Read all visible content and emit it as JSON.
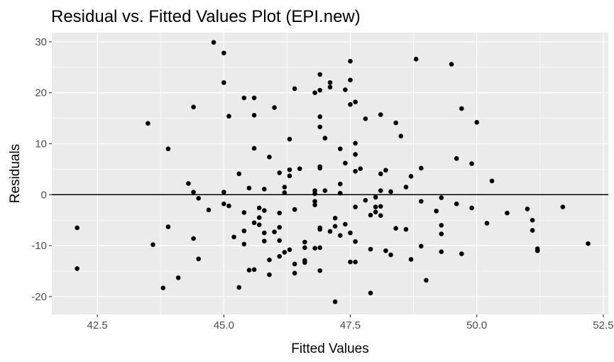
{
  "chart_data": {
    "type": "scatter",
    "title": "Residual vs. Fitted Values Plot (EPI.new)",
    "xlabel": "Fitted Values",
    "ylabel": "Residuals",
    "xlim": [
      41.6,
      52.6
    ],
    "ylim": [
      -23.5,
      31.8
    ],
    "x_ticks": [
      42.5,
      45.0,
      47.5,
      50.0,
      52.5
    ],
    "x_tick_labels": [
      "42.5",
      "45.0",
      "47.5",
      "50.0",
      "52.5"
    ],
    "y_ticks": [
      -20,
      -10,
      0,
      10,
      20,
      30
    ],
    "y_tick_labels": [
      "-20",
      "-10",
      "0",
      "10",
      "20",
      "30"
    ],
    "hline": 0,
    "grid": true,
    "colors": {
      "panel": "#ebebeb",
      "grid": "#ffffff",
      "point": "#000000",
      "hline": "#000000",
      "tick_text": "#4d4d4d"
    },
    "points": [
      [
        42.1,
        -6.5
      ],
      [
        42.1,
        -14.5
      ],
      [
        43.5,
        14.0
      ],
      [
        43.6,
        -9.8
      ],
      [
        43.8,
        -18.3
      ],
      [
        43.9,
        -6.3
      ],
      [
        43.9,
        9.0
      ],
      [
        44.1,
        -16.3
      ],
      [
        44.3,
        2.2
      ],
      [
        44.4,
        0.5
      ],
      [
        44.4,
        -8.6
      ],
      [
        44.4,
        17.2
      ],
      [
        44.5,
        -12.6
      ],
      [
        44.5,
        -0.7
      ],
      [
        44.7,
        -3.0
      ],
      [
        44.8,
        29.9
      ],
      [
        45.0,
        0.5
      ],
      [
        45.0,
        27.8
      ],
      [
        45.0,
        -1.8
      ],
      [
        45.0,
        22.0
      ],
      [
        45.1,
        -2.2
      ],
      [
        45.1,
        15.4
      ],
      [
        45.2,
        -8.3
      ],
      [
        45.3,
        -18.2
      ],
      [
        45.3,
        4.1
      ],
      [
        45.4,
        19.0
      ],
      [
        45.4,
        -7.1
      ],
      [
        45.4,
        -9.7
      ],
      [
        45.4,
        -3.5
      ],
      [
        45.5,
        -14.8
      ],
      [
        45.5,
        1.3
      ],
      [
        45.6,
        -14.7
      ],
      [
        45.6,
        19.0
      ],
      [
        45.6,
        15.6
      ],
      [
        45.6,
        9.1
      ],
      [
        45.6,
        -5.5
      ],
      [
        45.7,
        -2.6
      ],
      [
        45.7,
        -4.5
      ],
      [
        45.7,
        -5.9
      ],
      [
        45.8,
        -7.5
      ],
      [
        45.8,
        -3.1
      ],
      [
        45.8,
        1.1
      ],
      [
        45.8,
        -9.1
      ],
      [
        45.9,
        -15.7
      ],
      [
        45.9,
        -12.8
      ],
      [
        45.9,
        7.4
      ],
      [
        46.0,
        -7.3
      ],
      [
        46.0,
        17.1
      ],
      [
        46.1,
        -6.4
      ],
      [
        46.1,
        -3.6
      ],
      [
        46.1,
        4.3
      ],
      [
        46.1,
        -12.1
      ],
      [
        46.1,
        -9.0
      ],
      [
        46.2,
        -11.3
      ],
      [
        46.2,
        1.5
      ],
      [
        46.2,
        0.4
      ],
      [
        46.3,
        3.7
      ],
      [
        46.3,
        -10.8
      ],
      [
        46.3,
        10.9
      ],
      [
        46.3,
        4.9
      ],
      [
        46.4,
        -2.9
      ],
      [
        46.4,
        20.8
      ],
      [
        46.4,
        -13.6
      ],
      [
        46.4,
        -15.4
      ],
      [
        46.5,
        5.1
      ],
      [
        46.6,
        -10.4
      ],
      [
        46.6,
        -9.3
      ],
      [
        46.6,
        -13.3
      ],
      [
        46.6,
        -12.9
      ],
      [
        46.8,
        -1.3
      ],
      [
        46.8,
        0.2
      ],
      [
        46.8,
        -2.0
      ],
      [
        46.8,
        20.0
      ],
      [
        46.8,
        0.8
      ],
      [
        46.8,
        -10.5
      ],
      [
        46.9,
        5.5
      ],
      [
        46.9,
        5.2
      ],
      [
        46.9,
        -6.8
      ],
      [
        46.9,
        -6.5
      ],
      [
        46.9,
        23.6
      ],
      [
        46.9,
        20.5
      ],
      [
        46.9,
        15.3
      ],
      [
        46.9,
        13.3
      ],
      [
        46.9,
        -10.4
      ],
      [
        46.9,
        -14.9
      ],
      [
        47.0,
        0.8
      ],
      [
        47.0,
        11.1
      ],
      [
        47.1,
        21.1
      ],
      [
        47.1,
        22.0
      ],
      [
        47.1,
        -7.2
      ],
      [
        47.2,
        -21.0
      ],
      [
        47.2,
        -6.2
      ],
      [
        47.2,
        -4.6
      ],
      [
        47.3,
        0.3
      ],
      [
        47.3,
        2.1
      ],
      [
        47.3,
        -8.0
      ],
      [
        47.3,
        9.0
      ],
      [
        47.4,
        -5.8
      ],
      [
        47.4,
        6.2
      ],
      [
        47.4,
        20.6
      ],
      [
        47.5,
        -7.5
      ],
      [
        47.5,
        26.2
      ],
      [
        47.5,
        -13.2
      ],
      [
        47.5,
        17.7
      ],
      [
        47.5,
        22.5
      ],
      [
        47.6,
        18.2
      ],
      [
        47.6,
        -9.2
      ],
      [
        47.6,
        -13.2
      ],
      [
        47.6,
        10.1
      ],
      [
        47.6,
        7.9
      ],
      [
        47.6,
        4.6
      ],
      [
        47.6,
        -2.4
      ],
      [
        47.7,
        5.1
      ],
      [
        47.8,
        14.9
      ],
      [
        47.8,
        -1.1
      ],
      [
        47.9,
        -19.3
      ],
      [
        47.9,
        -10.7
      ],
      [
        47.9,
        -4.0
      ],
      [
        48.0,
        -2.4
      ],
      [
        48.0,
        -3.4
      ],
      [
        48.0,
        -0.5
      ],
      [
        48.1,
        15.7
      ],
      [
        48.1,
        -4.1
      ],
      [
        48.1,
        0.8
      ],
      [
        48.1,
        4.1
      ],
      [
        48.1,
        -2.3
      ],
      [
        48.2,
        -11.0
      ],
      [
        48.2,
        4.8
      ],
      [
        48.3,
        0.6
      ],
      [
        48.3,
        -11.8
      ],
      [
        48.4,
        -6.6
      ],
      [
        48.4,
        14.1
      ],
      [
        48.5,
        11.5
      ],
      [
        48.6,
        -6.8
      ],
      [
        48.6,
        1.5
      ],
      [
        48.7,
        -12.7
      ],
      [
        48.7,
        3.6
      ],
      [
        48.8,
        26.6
      ],
      [
        48.9,
        5.2
      ],
      [
        48.9,
        -1.3
      ],
      [
        48.9,
        -10.1
      ],
      [
        49.0,
        -16.8
      ],
      [
        49.2,
        -3.2
      ],
      [
        49.3,
        -11.2
      ],
      [
        49.3,
        -0.6
      ],
      [
        49.3,
        -6.0
      ],
      [
        49.3,
        -7.7
      ],
      [
        49.5,
        25.6
      ],
      [
        49.6,
        7.1
      ],
      [
        49.6,
        -1.8
      ],
      [
        49.7,
        -11.6
      ],
      [
        49.7,
        16.9
      ],
      [
        49.9,
        -2.6
      ],
      [
        49.9,
        6.1
      ],
      [
        50.0,
        14.2
      ],
      [
        50.2,
        -5.6
      ],
      [
        50.3,
        2.7
      ],
      [
        50.6,
        -3.6
      ],
      [
        51.0,
        -2.8
      ],
      [
        51.1,
        -7.0
      ],
      [
        51.1,
        -5.0
      ],
      [
        51.2,
        -10.6
      ],
      [
        51.2,
        -11.0
      ],
      [
        51.7,
        -2.4
      ],
      [
        52.2,
        -9.6
      ]
    ]
  }
}
